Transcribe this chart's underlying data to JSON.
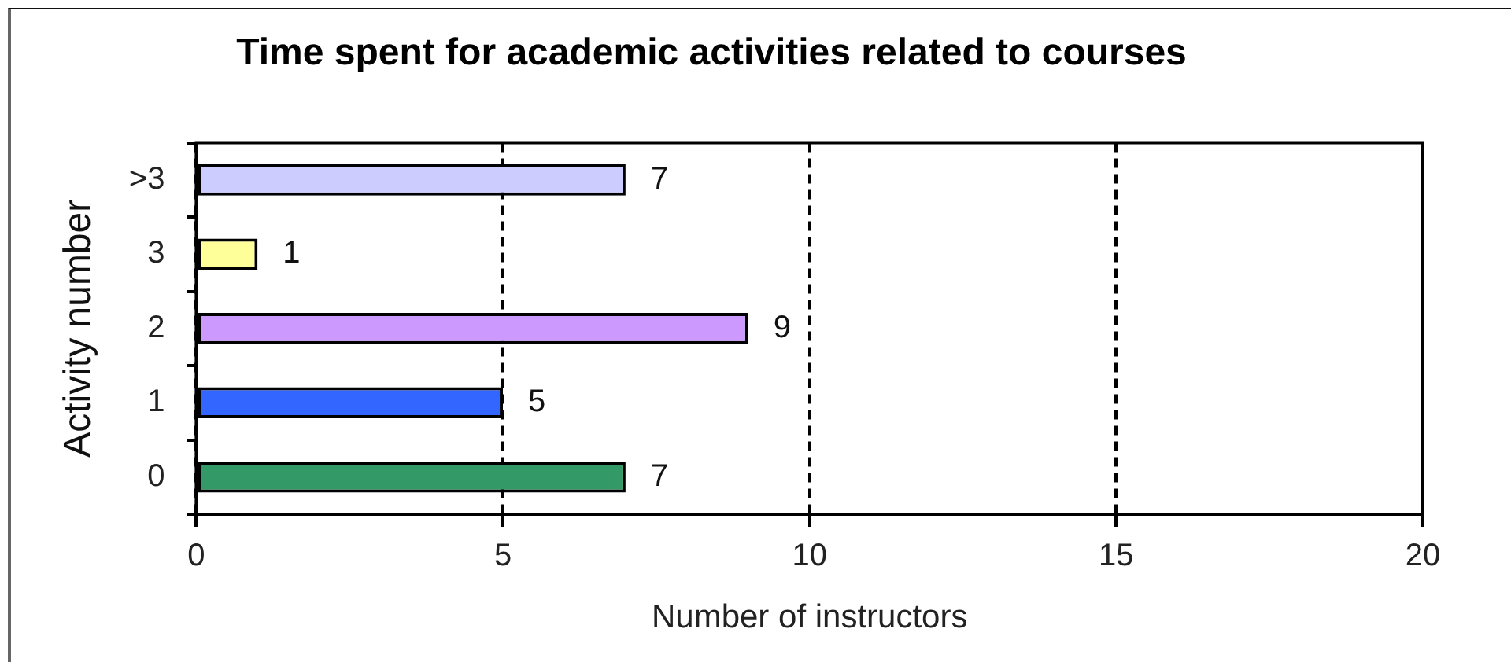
{
  "chart_data": {
    "type": "bar",
    "orientation": "horizontal",
    "title": "Time spent for academic activities related to courses",
    "xlabel": "Number of instructors",
    "ylabel": "Activity number",
    "categories": [
      ">3",
      "3",
      "2",
      "1",
      "0"
    ],
    "values": [
      7,
      1,
      9,
      5,
      7
    ],
    "colors": [
      "#ccccff",
      "#ffff99",
      "#cc99ff",
      "#3366ff",
      "#339966"
    ],
    "xlim": [
      0,
      20
    ],
    "xticks": [
      0,
      5,
      10,
      15,
      20
    ],
    "grid": "x",
    "data_labels": true
  }
}
